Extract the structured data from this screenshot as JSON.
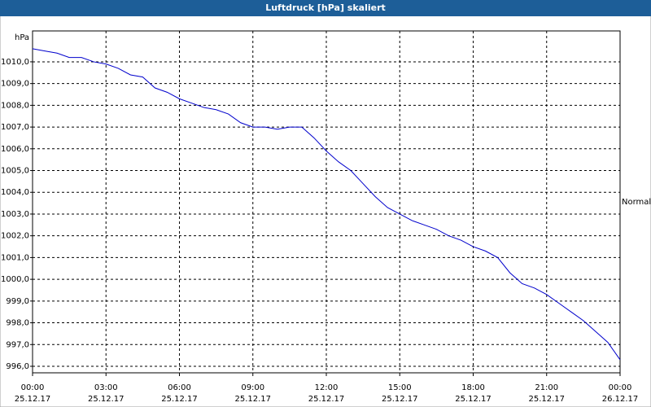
{
  "chart_data": {
    "type": "line",
    "title": "Luftdruck [hPa] skaliert",
    "ylabel": "hPa",
    "x": [
      0,
      0.5,
      1,
      1.5,
      2,
      2.5,
      3,
      3.5,
      4,
      4.5,
      5,
      5.5,
      6,
      6.5,
      7,
      7.5,
      8,
      8.5,
      9,
      9.5,
      10,
      10.5,
      11,
      11.5,
      12,
      12.5,
      13,
      13.5,
      14,
      14.5,
      15,
      15.5,
      16,
      16.5,
      17,
      17.5,
      18,
      18.5,
      19,
      19.5,
      20,
      20.5,
      21,
      21.5,
      22,
      22.5,
      23,
      23.5,
      24
    ],
    "series": [
      {
        "name": "Normal",
        "color": "#0000cc",
        "values": [
          1010.6,
          1010.5,
          1010.4,
          1010.2,
          1010.2,
          1010.0,
          1009.9,
          1009.7,
          1009.4,
          1009.3,
          1008.8,
          1008.6,
          1008.3,
          1008.1,
          1007.9,
          1007.8,
          1007.6,
          1007.2,
          1007.0,
          1007.0,
          1006.9,
          1007.0,
          1007.0,
          1006.5,
          1005.9,
          1005.4,
          1005.0,
          1004.4,
          1003.8,
          1003.3,
          1003.0,
          1002.7,
          1002.5,
          1002.3,
          1002.0,
          1001.8,
          1001.5,
          1001.3,
          1001.0,
          1000.3,
          999.8,
          999.6,
          999.3,
          998.9,
          998.5,
          998.1,
          997.6,
          997.1,
          996.3
        ]
      }
    ],
    "xlim": [
      0,
      24
    ],
    "xticks": [
      {
        "value": 0,
        "label": "00:00",
        "date": "25.12.17"
      },
      {
        "value": 3,
        "label": "03:00",
        "date": "25.12.17"
      },
      {
        "value": 6,
        "label": "06:00",
        "date": "25.12.17"
      },
      {
        "value": 9,
        "label": "09:00",
        "date": "25.12.17"
      },
      {
        "value": 12,
        "label": "12:00",
        "date": "25.12.17"
      },
      {
        "value": 15,
        "label": "15:00",
        "date": "25.12.17"
      },
      {
        "value": 18,
        "label": "18:00",
        "date": "25.12.17"
      },
      {
        "value": 21,
        "label": "21:00",
        "date": "25.12.17"
      },
      {
        "value": 24,
        "label": "00:00",
        "date": "26.12.17"
      }
    ],
    "ylim": [
      995.7,
      1011.42
    ],
    "yticks": [
      {
        "value": 996,
        "label": "996,0"
      },
      {
        "value": 997,
        "label": "997,0"
      },
      {
        "value": 998,
        "label": "998,0"
      },
      {
        "value": 999,
        "label": "999,0"
      },
      {
        "value": 1000,
        "label": "1000,0"
      },
      {
        "value": 1001,
        "label": "1001,0"
      },
      {
        "value": 1002,
        "label": "1002,0"
      },
      {
        "value": 1003,
        "label": "1003,0"
      },
      {
        "value": 1004,
        "label": "1004,0"
      },
      {
        "value": 1005,
        "label": "1005,0"
      },
      {
        "value": 1006,
        "label": "1006,0"
      },
      {
        "value": 1007,
        "label": "1007,0"
      },
      {
        "value": 1008,
        "label": "1008,0"
      },
      {
        "value": 1009,
        "label": "1009,0"
      },
      {
        "value": 1010,
        "label": "1010,0"
      }
    ],
    "grid": true,
    "legend": "right"
  }
}
